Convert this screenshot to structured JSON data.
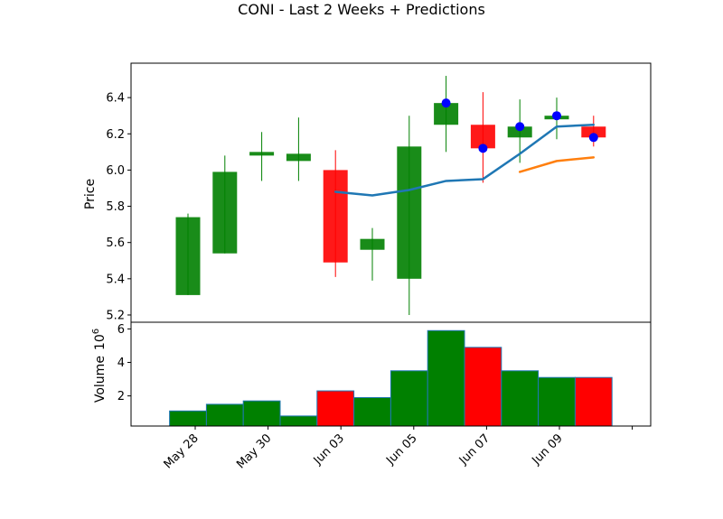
{
  "chart_data": [
    {
      "type": "candlestick",
      "title": "CONI - Last 2 Weeks + Predictions",
      "ylabel": "Price",
      "ylim": [
        5.16,
        6.59
      ],
      "yticks": [
        5.2,
        5.4,
        5.6,
        5.8,
        6.0,
        6.2,
        6.4
      ],
      "x_tick_labels": [
        "May 28",
        "May 30",
        "Jun 03",
        "Jun 05",
        "Jun 07",
        "Jun 09",
        ""
      ],
      "candles": [
        {
          "date": "May 28",
          "open": 5.31,
          "high": 5.76,
          "low": 5.31,
          "close": 5.74
        },
        {
          "date": "May 29",
          "open": 5.54,
          "high": 6.08,
          "low": 5.54,
          "close": 5.99
        },
        {
          "date": "May 30",
          "open": 6.08,
          "high": 6.21,
          "low": 5.94,
          "close": 6.1
        },
        {
          "date": "May 31",
          "open": 6.05,
          "high": 6.29,
          "low": 5.94,
          "close": 6.09
        },
        {
          "date": "Jun 03",
          "open": 6.0,
          "high": 6.11,
          "low": 5.41,
          "close": 5.49
        },
        {
          "date": "Jun 04",
          "open": 5.56,
          "high": 5.68,
          "low": 5.39,
          "close": 5.62
        },
        {
          "date": "Jun 05",
          "open": 5.4,
          "high": 6.3,
          "low": 5.2,
          "close": 6.13
        },
        {
          "date": "Jun 06",
          "open": 6.25,
          "high": 6.52,
          "low": 6.1,
          "close": 6.37
        },
        {
          "date": "Jun 07",
          "open": 6.25,
          "high": 6.43,
          "low": 5.93,
          "close": 6.12
        },
        {
          "date": "Jun 08",
          "open": 6.18,
          "high": 6.39,
          "low": 6.04,
          "close": 6.24
        },
        {
          "date": "Jun 09",
          "open": 6.28,
          "high": 6.4,
          "low": 6.17,
          "close": 6.3
        },
        {
          "date": "Jun 10",
          "open": 6.24,
          "high": 6.3,
          "low": 6.13,
          "close": 6.18
        }
      ],
      "markers": {
        "color": "#0000ff",
        "points": [
          {
            "date": "Jun 06",
            "value": 6.37
          },
          {
            "date": "Jun 07",
            "value": 6.12
          },
          {
            "date": "Jun 08",
            "value": 6.24
          },
          {
            "date": "Jun 09",
            "value": 6.3
          },
          {
            "date": "Jun 10",
            "value": 6.18
          }
        ]
      },
      "lines": [
        {
          "color": "#1f77b4",
          "points": [
            {
              "date": "Jun 03",
              "value": 5.88
            },
            {
              "date": "Jun 04",
              "value": 5.86
            },
            {
              "date": "Jun 05",
              "value": 5.89
            },
            {
              "date": "Jun 06",
              "value": 5.94
            },
            {
              "date": "Jun 07",
              "value": 5.95
            },
            {
              "date": "Jun 08",
              "value": 6.09
            },
            {
              "date": "Jun 09",
              "value": 6.24
            },
            {
              "date": "Jun 10",
              "value": 6.25
            }
          ]
        },
        {
          "color": "#ff7f0e",
          "points": [
            {
              "date": "Jun 08",
              "value": 5.99
            },
            {
              "date": "Jun 09",
              "value": 6.05
            },
            {
              "date": "Jun 10",
              "value": 6.07
            }
          ]
        }
      ],
      "colors": {
        "up": "#008000",
        "down": "#ff0000"
      }
    },
    {
      "type": "bar",
      "ylabel": "Volume",
      "ylabel_unit": "10",
      "ylabel_unit_exp": "6",
      "ylim": [
        0.2,
        6.4
      ],
      "yticks": [
        2,
        4,
        6
      ],
      "x_tick_labels": [
        "May 28",
        "May 30",
        "Jun 03",
        "Jun 05",
        "Jun 07",
        "Jun 09",
        ""
      ],
      "categories": [
        "May 28",
        "May 29",
        "May 30",
        "May 31",
        "Jun 03",
        "Jun 04",
        "Jun 05",
        "Jun 06",
        "Jun 07",
        "Jun 08",
        "Jun 09",
        "Jun 10"
      ],
      "values": [
        1.1,
        1.5,
        1.7,
        0.8,
        2.3,
        1.9,
        3.5,
        5.9,
        4.9,
        3.5,
        3.1,
        3.1
      ],
      "bar_colors": [
        "#008000",
        "#008000",
        "#008000",
        "#008000",
        "#ff0000",
        "#008000",
        "#008000",
        "#008000",
        "#ff0000",
        "#008000",
        "#008000",
        "#ff0000"
      ]
    }
  ]
}
